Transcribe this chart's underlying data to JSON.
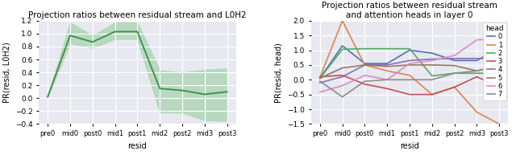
{
  "x_labels": [
    "pre0",
    "mid0",
    "post0",
    "mid1",
    "post1",
    "mid2",
    "post2",
    "mid3",
    "post3"
  ],
  "left_chart": {
    "title": "Projection ratios between residual stream and L0H2",
    "ylabel": "PR(resid, L0H2)",
    "mean": [
      0.02,
      0.97,
      0.87,
      1.03,
      1.03,
      0.15,
      0.12,
      0.06,
      0.1
    ],
    "lower": [
      0.02,
      0.85,
      0.78,
      0.92,
      0.92,
      -0.22,
      -0.22,
      -0.34,
      -0.35
    ],
    "upper": [
      0.02,
      1.17,
      0.97,
      1.17,
      1.17,
      0.43,
      0.4,
      0.44,
      0.46
    ],
    "line_color": "#3a8c4e",
    "fill_color": "#a8d5b0",
    "ylim": [
      -0.4,
      1.2
    ],
    "yticks": [
      -0.4,
      -0.2,
      0.0,
      0.2,
      0.4,
      0.6,
      0.8,
      1.0,
      1.2
    ]
  },
  "right_chart": {
    "title": "Projection ratios between residual stream\nand attention heads in layer 0",
    "ylabel": "PR(resid, head)",
    "legend_title": "head",
    "ylim": [
      -1.5,
      2.0
    ],
    "yticks": [
      -1.5,
      -1.0,
      -0.5,
      0.0,
      0.5,
      1.0,
      1.5,
      2.0
    ],
    "heads": {
      "0": {
        "color": "#4c72b0",
        "values": [
          0.05,
          1.15,
          0.55,
          0.55,
          1.0,
          0.9,
          0.65,
          0.65,
          1.08
        ]
      },
      "1": {
        "color": "#dd8452",
        "values": [
          0.08,
          2.0,
          0.5,
          0.3,
          0.15,
          -0.5,
          -0.25,
          -1.1,
          -1.5
        ]
      },
      "2": {
        "color": "#55a868",
        "values": [
          0.05,
          1.03,
          1.05,
          1.05,
          1.05,
          0.13,
          0.22,
          0.22,
          0.22
        ]
      },
      "3": {
        "color": "#c44e52",
        "values": [
          0.1,
          0.15,
          -0.15,
          -0.3,
          -0.5,
          -0.5,
          -0.25,
          0.1,
          -0.25
        ]
      },
      "4": {
        "color": "#8172b3",
        "values": [
          -0.1,
          0.1,
          0.5,
          0.5,
          0.65,
          0.7,
          0.72,
          0.72,
          0.72
        ]
      },
      "5": {
        "color": "#937860",
        "values": [
          0.05,
          0.4,
          0.5,
          0.45,
          0.5,
          0.5,
          0.48,
          0.3,
          0.48
        ]
      },
      "6": {
        "color": "#da8bc3",
        "values": [
          -0.42,
          -0.2,
          0.15,
          0.0,
          0.55,
          0.65,
          0.82,
          1.35,
          1.38
        ]
      },
      "7": {
        "color": "#8c8c8c",
        "values": [
          -0.05,
          -0.58,
          -0.05,
          0.0,
          0.0,
          0.0,
          0.22,
          0.3,
          0.5
        ]
      }
    }
  },
  "bg_color": "#e8e8f0",
  "grid_color": "white",
  "xlabel": "resid",
  "fig_bg": "#f0f0f0"
}
